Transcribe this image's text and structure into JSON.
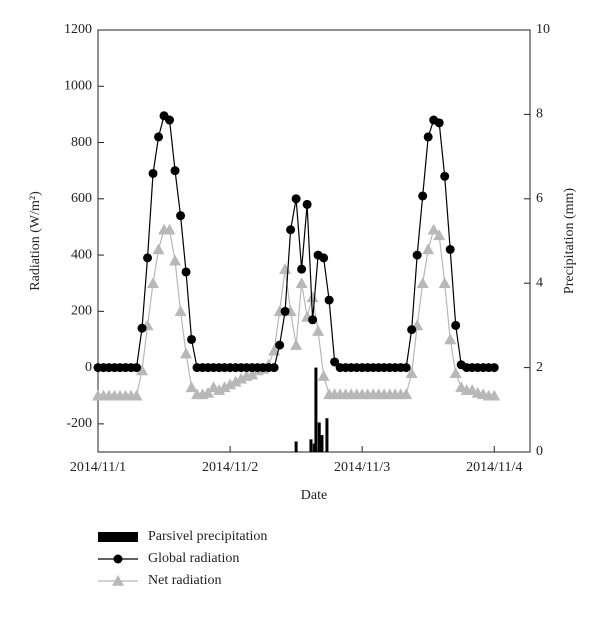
{
  "chart_data": {
    "type": "line",
    "xlabel": "Date",
    "ylabel": "Radiation (W/m²)",
    "y2label": "Precipitation (mm)",
    "xlim": [
      0,
      78.5
    ],
    "xticks": [
      {
        "value": 0,
        "label": "2014/11/1"
      },
      {
        "value": 24,
        "label": "2014/11/2"
      },
      {
        "value": 48,
        "label": "2014/11/3"
      },
      {
        "value": 72,
        "label": "2014/11/4"
      }
    ],
    "ylim": [
      -300,
      1200
    ],
    "yticks": [
      -200,
      0,
      200,
      400,
      600,
      800,
      1000,
      1200
    ],
    "y2lim": [
      0,
      10
    ],
    "y2ticks": [
      0,
      2,
      4,
      6,
      8,
      10
    ],
    "series": [
      {
        "name": "Parsivel precipitation",
        "type": "bar",
        "axis": "y2",
        "color": "#000000",
        "x": [
          36,
          38.7,
          39.3,
          39.6,
          40.2,
          40.7,
          41.6
        ],
        "values": [
          0.25,
          0.3,
          0.2,
          2.0,
          0.7,
          0.4,
          0.8
        ]
      },
      {
        "name": "Global radiation",
        "type": "line",
        "marker": "circle",
        "color": "#000000",
        "x": [
          0,
          1,
          2,
          3,
          4,
          5,
          6,
          7,
          8,
          9,
          10,
          11,
          12,
          13,
          14,
          15,
          16,
          17,
          18,
          19,
          20,
          21,
          22,
          23,
          24,
          25,
          26,
          27,
          28,
          29,
          30,
          31,
          32,
          33,
          34,
          35,
          36,
          37,
          38,
          39,
          40,
          41,
          42,
          43,
          44,
          45,
          46,
          47,
          48,
          49,
          50,
          51,
          52,
          53,
          54,
          55,
          56,
          57,
          58,
          59,
          60,
          61,
          62,
          63,
          64,
          65,
          66,
          67,
          68,
          69,
          70,
          71,
          72
        ],
        "values": [
          0,
          0,
          0,
          0,
          0,
          0,
          0,
          0,
          140,
          390,
          690,
          820,
          895,
          880,
          700,
          540,
          340,
          100,
          0,
          0,
          0,
          0,
          0,
          0,
          0,
          0,
          0,
          0,
          0,
          0,
          0,
          0,
          0,
          80,
          200,
          490,
          600,
          350,
          580,
          170,
          400,
          390,
          240,
          20,
          0,
          0,
          0,
          0,
          0,
          0,
          0,
          0,
          0,
          0,
          0,
          0,
          0,
          135,
          400,
          610,
          820,
          880,
          870,
          680,
          420,
          150,
          10,
          0,
          0,
          0,
          0,
          0,
          0
        ]
      },
      {
        "name": "Net radiation",
        "type": "line",
        "marker": "triangle",
        "color": "#b8b8b8",
        "x": [
          0,
          1,
          2,
          3,
          4,
          5,
          6,
          7,
          8,
          9,
          10,
          11,
          12,
          13,
          14,
          15,
          16,
          17,
          18,
          19,
          20,
          21,
          22,
          23,
          24,
          25,
          26,
          27,
          28,
          29,
          30,
          31,
          32,
          33,
          34,
          35,
          36,
          37,
          38,
          39,
          40,
          41,
          42,
          43,
          44,
          45,
          46,
          47,
          48,
          49,
          50,
          51,
          52,
          53,
          54,
          55,
          56,
          57,
          58,
          59,
          60,
          61,
          62,
          63,
          64,
          65,
          66,
          67,
          68,
          69,
          70,
          71,
          72
        ],
        "values": [
          -100,
          -100,
          -100,
          -100,
          -100,
          -100,
          -100,
          -100,
          -10,
          150,
          300,
          420,
          490,
          490,
          380,
          200,
          50,
          -70,
          -95,
          -95,
          -90,
          -70,
          -80,
          -70,
          -60,
          -50,
          -40,
          -30,
          -25,
          -10,
          -5,
          10,
          60,
          200,
          350,
          200,
          80,
          300,
          180,
          250,
          130,
          -30,
          -95,
          -95,
          -95,
          -95,
          -95,
          -95,
          -95,
          -95,
          -95,
          -95,
          -95,
          -95,
          -95,
          -95,
          -95,
          -20,
          150,
          300,
          420,
          490,
          470,
          300,
          100,
          -20,
          -70,
          -80,
          -80,
          -90,
          -95,
          -100,
          -100
        ]
      }
    ]
  }
}
